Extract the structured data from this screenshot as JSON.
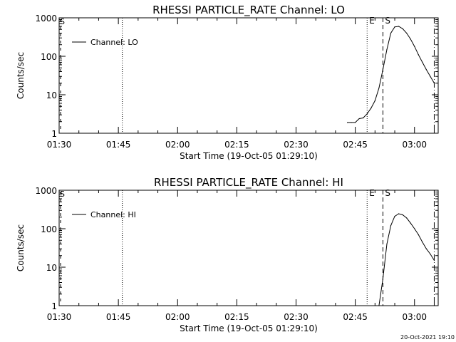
{
  "footer": {
    "timestamp": "20-Oct-2021 19:10"
  },
  "chart_data": [
    {
      "type": "line",
      "title": "RHESSI PARTICLE_RATE Channel: LO",
      "xlabel": "Start Time (19-Oct-05 01:29:10)",
      "ylabel": "Counts/sec",
      "y_scale": "log",
      "xlim": [
        "01:30",
        "03:06"
      ],
      "ylim": [
        1,
        1000
      ],
      "x_ticks": [
        "01:30",
        "01:45",
        "02:00",
        "02:15",
        "02:30",
        "02:45",
        "03:00"
      ],
      "y_ticks": [
        "1",
        "10",
        "100",
        "1000"
      ],
      "legend": {
        "position": "top-left",
        "entries": [
          "Channel: LO"
        ]
      },
      "markers": [
        {
          "time": "01:46",
          "style": "dotted",
          "label": ""
        },
        {
          "time": "02:48",
          "style": "dotted",
          "label": "E"
        },
        {
          "time": "02:52",
          "style": "dashed",
          "label": "S"
        },
        {
          "time": "03:05",
          "style": "dashdot",
          "label": ""
        }
      ],
      "series": [
        {
          "name": "Channel: LO",
          "x": [
            "02:43",
            "02:44",
            "02:45",
            "02:46",
            "02:47",
            "02:48",
            "02:49",
            "02:50",
            "02:51",
            "02:52",
            "02:53",
            "02:54",
            "02:55",
            "02:56",
            "02:57",
            "02:58",
            "02:59",
            "03:00",
            "03:01",
            "03:02",
            "03:03",
            "03:04",
            "03:05"
          ],
          "y": [
            1.9,
            1.9,
            1.9,
            2.4,
            2.5,
            3.2,
            4.5,
            7,
            15,
            45,
            150,
            400,
            580,
            600,
            520,
            400,
            280,
            180,
            110,
            70,
            45,
            30,
            20
          ]
        }
      ],
      "x_edge_label": "S"
    },
    {
      "type": "line",
      "title": "RHESSI PARTICLE_RATE Channel: HI",
      "xlabel": "Start Time (19-Oct-05 01:29:10)",
      "ylabel": "Counts/sec",
      "y_scale": "log",
      "xlim": [
        "01:30",
        "03:06"
      ],
      "ylim": [
        1,
        1000
      ],
      "x_ticks": [
        "01:30",
        "01:45",
        "02:00",
        "02:15",
        "02:30",
        "02:45",
        "03:00"
      ],
      "y_ticks": [
        "1",
        "10",
        "100",
        "1000"
      ],
      "legend": {
        "position": "top-left",
        "entries": [
          "Channel: HI"
        ]
      },
      "markers": [
        {
          "time": "01:46",
          "style": "dotted",
          "label": ""
        },
        {
          "time": "02:48",
          "style": "dotted",
          "label": "E"
        },
        {
          "time": "02:52",
          "style": "dashed",
          "label": "S"
        },
        {
          "time": "03:05",
          "style": "dashdot",
          "label": ""
        }
      ],
      "series": [
        {
          "name": "Channel: HI",
          "x": [
            "02:51",
            "02:52",
            "02:53",
            "02:54",
            "02:55",
            "02:56",
            "02:57",
            "02:58",
            "02:59",
            "03:00",
            "03:01",
            "03:02",
            "03:03",
            "03:04",
            "03:05"
          ],
          "y": [
            1,
            5,
            40,
            120,
            210,
            245,
            230,
            190,
            140,
            100,
            70,
            45,
            30,
            22,
            15
          ]
        }
      ],
      "x_edge_label": "S"
    }
  ]
}
